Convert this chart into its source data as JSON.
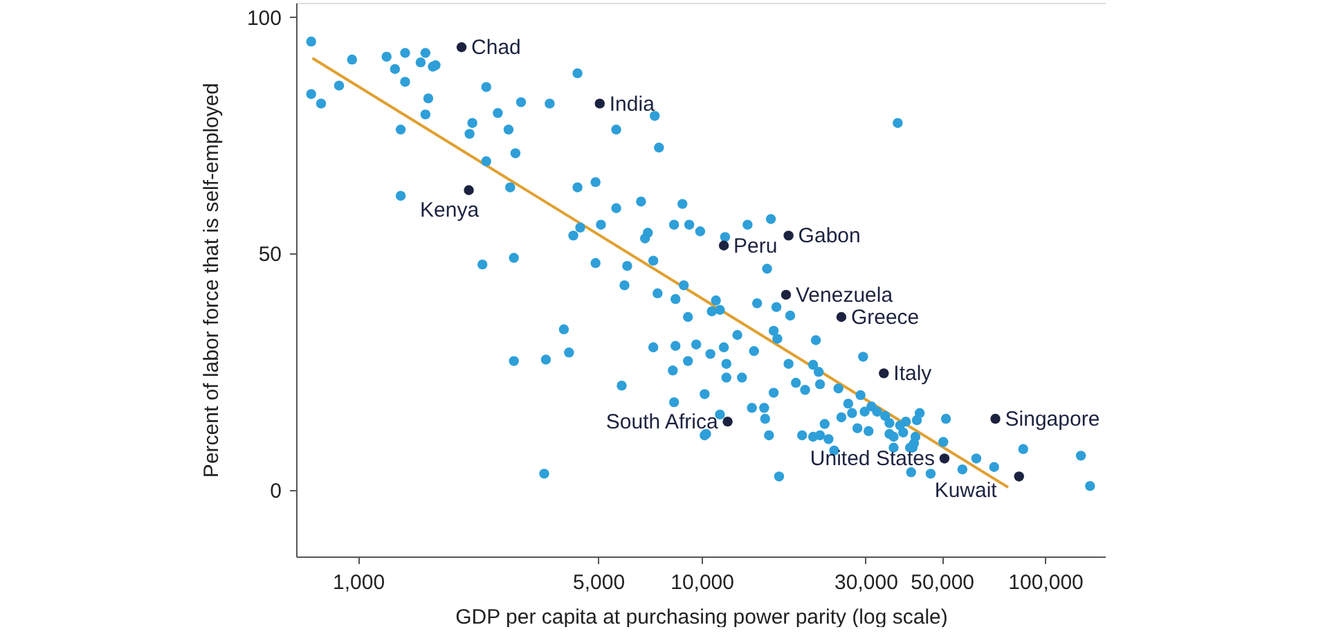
{
  "chart_data": {
    "type": "scatter",
    "xlabel": "GDP per capita at purchasing power parity (log scale)",
    "ylabel": "Percent of labor force that is self-employed",
    "log": "x",
    "xlim": [
      660,
      150000
    ],
    "xticks": [
      {
        "value": 1000,
        "label": "1,000"
      },
      {
        "value": 5000,
        "label": "5,000"
      },
      {
        "value": 10000,
        "label": "10,000"
      },
      {
        "value": 30000,
        "label": "30,000"
      },
      {
        "value": 50000,
        "label": "50,000"
      },
      {
        "value": 100000,
        "label": "100,000"
      }
    ],
    "ylim": [
      -14,
      103
    ],
    "yticks": [
      0,
      50,
      100
    ],
    "series": [
      {
        "color": "#2e9fd8",
        "x": [
          730,
          960,
          1210,
          1370,
          1570,
          1280,
          1520,
          1650,
          1680,
          1370,
          730,
          780,
          880,
          1600,
          1570,
          1330,
          2360,
          2150,
          2110,
          2550,
          2980,
          3610,
          2740,
          2870,
          2360,
          2770,
          4350,
          7300,
          5640,
          7510,
          1330,
          4350,
          4910,
          5640,
          6660,
          8790,
          4230,
          4430,
          5090,
          6970,
          6840,
          8310,
          9200,
          9900,
          2300,
          2840,
          4910,
          6070,
          7230,
          5960,
          7440,
          8390,
          8870,
          9120,
          3970,
          2840,
          3520,
          4110,
          5850,
          7230,
          8390,
          9640,
          9120,
          8240,
          8310,
          10200,
          10200,
          3480,
          13600,
          15900,
          11700,
          15500,
          11000,
          10700,
          11300,
          14500,
          16500,
          18100,
          12700,
          16200,
          16600,
          21500,
          11600,
          10600,
          14200,
          11800,
          11800,
          13100,
          17900,
          21100,
          21900,
          29500,
          18800,
          20000,
          22100,
          25000,
          16200,
          29000,
          26700,
          14000,
          15200,
          31200,
          32400,
          34200,
          29800,
          27400,
          15300,
          11300,
          25500,
          35200,
          39300,
          43100,
          42300,
          51400,
          10300,
          15700,
          22800,
          28400,
          30600,
          37800,
          19600,
          21100,
          22100,
          23400,
          35200,
          36200,
          38600,
          41900,
          41500,
          41100,
          50500,
          36200,
          24300,
          40400,
          63000,
          86300,
          127000,
          57400,
          71000,
          40700,
          46400,
          16800,
          135000,
          37200
        ],
        "values": [
          94.8,
          91.0,
          91.6,
          92.4,
          92.4,
          89.0,
          90.4,
          89.5,
          89.8,
          86.3,
          83.7,
          81.7,
          85.5,
          82.8,
          79.4,
          76.2,
          85.2,
          77.6,
          75.3,
          79.7,
          82.0,
          81.7,
          76.2,
          71.2,
          69.5,
          64.0,
          88.1,
          79.1,
          76.2,
          72.4,
          62.2,
          64.0,
          65.1,
          59.6,
          61.0,
          60.5,
          53.8,
          55.5,
          56.1,
          54.4,
          53.2,
          56.1,
          56.1,
          54.7,
          47.7,
          49.1,
          48.0,
          47.4,
          48.5,
          43.3,
          41.6,
          40.4,
          43.3,
          36.6,
          34.0,
          27.3,
          27.6,
          29.1,
          22.1,
          30.2,
          30.5,
          30.8,
          27.3,
          25.3,
          18.6,
          20.3,
          11.6,
          3.5,
          56.1,
          57.3,
          53.5,
          46.8,
          40.1,
          37.8,
          38.1,
          39.5,
          38.7,
          36.9,
          32.8,
          33.7,
          32.0,
          31.7,
          30.2,
          28.8,
          29.4,
          26.7,
          23.8,
          23.8,
          26.7,
          26.5,
          25.0,
          28.2,
          22.7,
          21.2,
          22.4,
          21.5,
          20.6,
          20.1,
          18.3,
          17.4,
          17.4,
          17.7,
          16.6,
          15.7,
          16.6,
          16.3,
          15.1,
          16.0,
          15.4,
          14.2,
          14.5,
          16.3,
          14.8,
          15.1,
          11.9,
          11.6,
          14.0,
          13.1,
          12.5,
          13.7,
          11.6,
          11.3,
          11.6,
          10.8,
          11.9,
          11.3,
          12.2,
          11.3,
          9.9,
          9.0,
          10.2,
          9.0,
          8.4,
          9.0,
          6.7,
          8.7,
          7.3,
          4.4,
          4.9,
          3.8,
          3.5,
          2.9,
          0.9,
          77.6
        ]
      },
      {
        "color": "#1c2340",
        "x": [
          2000,
          5050,
          2100,
          11600,
          17900,
          17600,
          25500,
          33900,
          11900,
          71600,
          50900,
          83900
        ],
        "values": [
          93.6,
          81.7,
          63.4,
          51.7,
          53.8,
          41.3,
          36.6,
          24.7,
          14.5,
          15.1,
          6.7,
          2.9
        ]
      },
      {
        "type": "line",
        "color": "#e0a030",
        "x": [
          736,
          78000
        ],
        "values": [
          91.3,
          0.6
        ]
      }
    ],
    "annotations": [
      {
        "text": "Chad",
        "x": 2000,
        "y": 93.6
      },
      {
        "text": "India",
        "x": 5050,
        "y": 81.7
      },
      {
        "text": "Kenya",
        "x": 2100,
        "y": 63.4
      },
      {
        "text": "Peru",
        "x": 11600,
        "y": 51.7
      },
      {
        "text": "Gabon",
        "x": 17900,
        "y": 53.8
      },
      {
        "text": "Venezuela",
        "x": 17600,
        "y": 41.3
      },
      {
        "text": "Greece",
        "x": 25500,
        "y": 36.6
      },
      {
        "text": "Italy",
        "x": 33900,
        "y": 24.7
      },
      {
        "text": "South Africa",
        "x": 11900,
        "y": 14.5
      },
      {
        "text": "Singapore",
        "x": 71600,
        "y": 15.1
      },
      {
        "text": "United States",
        "x": 50900,
        "y": 6.7
      },
      {
        "text": "Kuwait",
        "x": 83900,
        "y": 2.9
      }
    ]
  }
}
